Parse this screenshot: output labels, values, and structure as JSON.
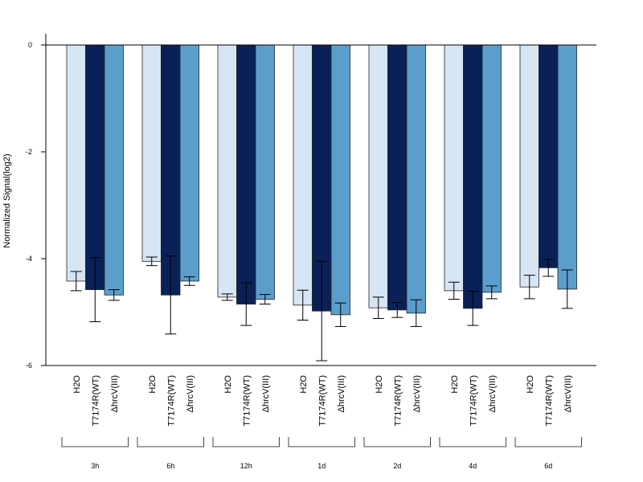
{
  "chart_data": {
    "type": "bar",
    "ylabel": "Normalized Signal(log2)",
    "xlabel": "",
    "ylim": [
      -6,
      0
    ],
    "y_ticks": [
      "0",
      "-2",
      "-4",
      "-6"
    ],
    "y_tick_values": [
      0,
      -2,
      -4,
      -6
    ],
    "series": [
      {
        "name": "H2O",
        "color": "#d6e5f4",
        "values": [
          -4.42,
          -4.05,
          -4.72,
          -4.87,
          -4.92,
          -4.6,
          -4.53
        ],
        "errors": [
          0.18,
          0.08,
          0.06,
          0.28,
          0.2,
          0.16,
          0.22
        ]
      },
      {
        "name": "T7174R(WT)",
        "color": "#0a2158",
        "values": [
          -4.58,
          -4.68,
          -4.85,
          -4.98,
          -4.96,
          -4.93,
          -4.17
        ],
        "errors": [
          0.6,
          0.73,
          0.4,
          0.93,
          0.14,
          0.32,
          0.16
        ]
      },
      {
        "name": "ΔhrcV(III)",
        "color": "#5b9ecc",
        "values": [
          -4.68,
          -4.42,
          -4.76,
          -5.05,
          -5.02,
          -4.63,
          -4.57
        ],
        "errors": [
          0.1,
          0.08,
          0.09,
          0.22,
          0.25,
          0.12,
          0.36
        ]
      }
    ],
    "bar_labels": [
      "H2O",
      "T7174R(WT)",
      "ΔhrcV(III)"
    ],
    "groups": [
      "3h",
      "6h",
      "12h",
      "1d",
      "2d",
      "4d",
      "6d"
    ],
    "grid": false
  }
}
